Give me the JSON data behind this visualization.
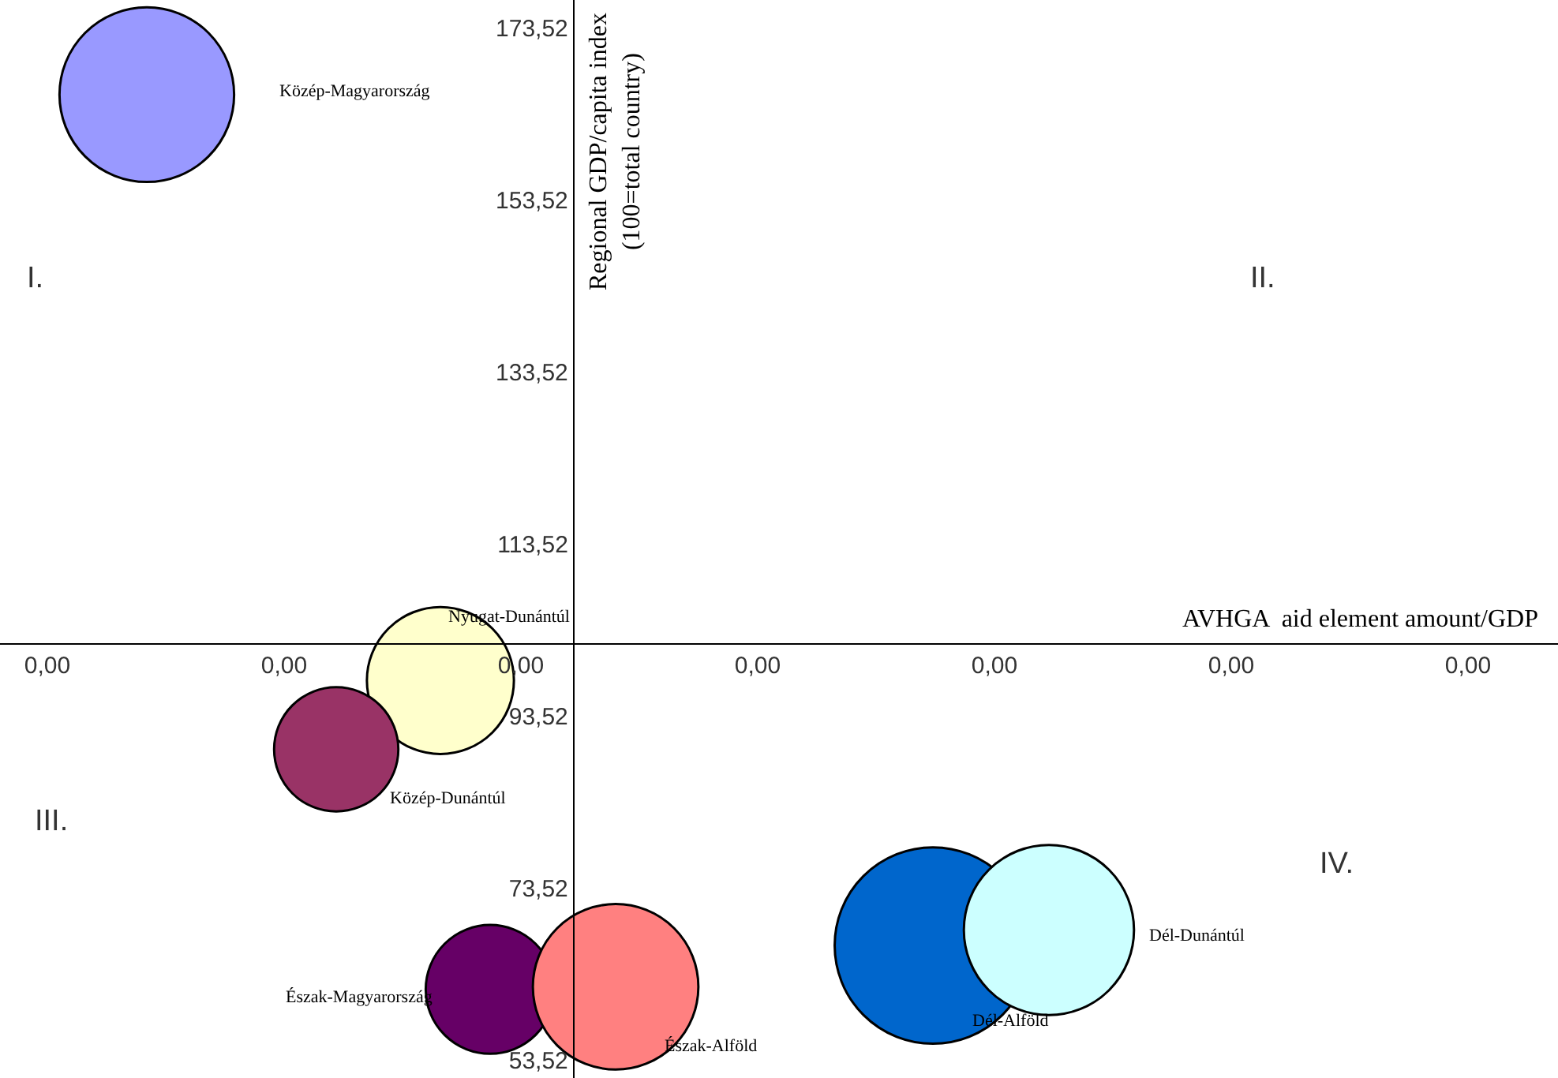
{
  "chart_data": {
    "type": "bubble",
    "ylabel": "Regional GDP/capita index\n(100=total country)",
    "xlabel": "AVHGA  aid element amount/GDP",
    "xlim": [
      -0.0001,
      0.00319
    ],
    "ylim": [
      51.5,
      176.8
    ],
    "xticks": [
      {
        "value": 0,
        "label": "0,00"
      },
      {
        "value": 0.0005,
        "label": "0,00"
      },
      {
        "value": 0.001,
        "label": "0,00"
      },
      {
        "value": 0.0015,
        "label": "0,00"
      },
      {
        "value": 0.002,
        "label": "0,00"
      },
      {
        "value": 0.0025,
        "label": "0,00"
      },
      {
        "value": 0.003,
        "label": "0,00"
      }
    ],
    "yticks": [
      {
        "value": 53.52,
        "label": "53,52"
      },
      {
        "value": 73.52,
        "label": "73,52"
      },
      {
        "value": 93.52,
        "label": "93,52"
      },
      {
        "value": 113.52,
        "label": "113,52"
      },
      {
        "value": 133.52,
        "label": "133,52"
      },
      {
        "value": 153.52,
        "label": "153,52"
      },
      {
        "value": 173.52,
        "label": "173,52"
      }
    ],
    "legend": false,
    "series": [
      {
        "name": "Közép-Magyarország",
        "color": "#9999ff",
        "x": [
          0.00021
        ],
        "values": [
          165.8
        ],
        "sizes": [
          0.79
        ]
      },
      {
        "name": "Nyugat-Dunántúl",
        "color": "#ffffcc",
        "x": [
          0.00083
        ],
        "values": [
          97.7
        ],
        "sizes": [
          0.56
        ]
      },
      {
        "name": "Közép-Dunántúl",
        "color": "#993366",
        "x": [
          0.00061
        ],
        "values": [
          89.7
        ],
        "sizes": [
          0.4
        ]
      },
      {
        "name": "Észak-Magyarország",
        "color": "#660066",
        "x": [
          0.000935
        ],
        "values": [
          61.8
        ],
        "sizes": [
          0.43
        ]
      },
      {
        "name": "Észak-Alföld",
        "color": "#ff8080",
        "x": [
          0.0012
        ],
        "values": [
          62.1
        ],
        "sizes": [
          0.71
        ]
      },
      {
        "name": "Dél-Alföld",
        "color": "#0066cc",
        "x": [
          0.00187
        ],
        "values": [
          66.9
        ],
        "sizes": [
          1
        ]
      },
      {
        "name": "Dél-Dunántúl",
        "color": "#ccffff",
        "x": [
          0.002115
        ],
        "values": [
          68.7
        ],
        "sizes": [
          0.75
        ]
      }
    ],
    "annotations": [
      "I.",
      "II.",
      "III.",
      "IV."
    ]
  }
}
